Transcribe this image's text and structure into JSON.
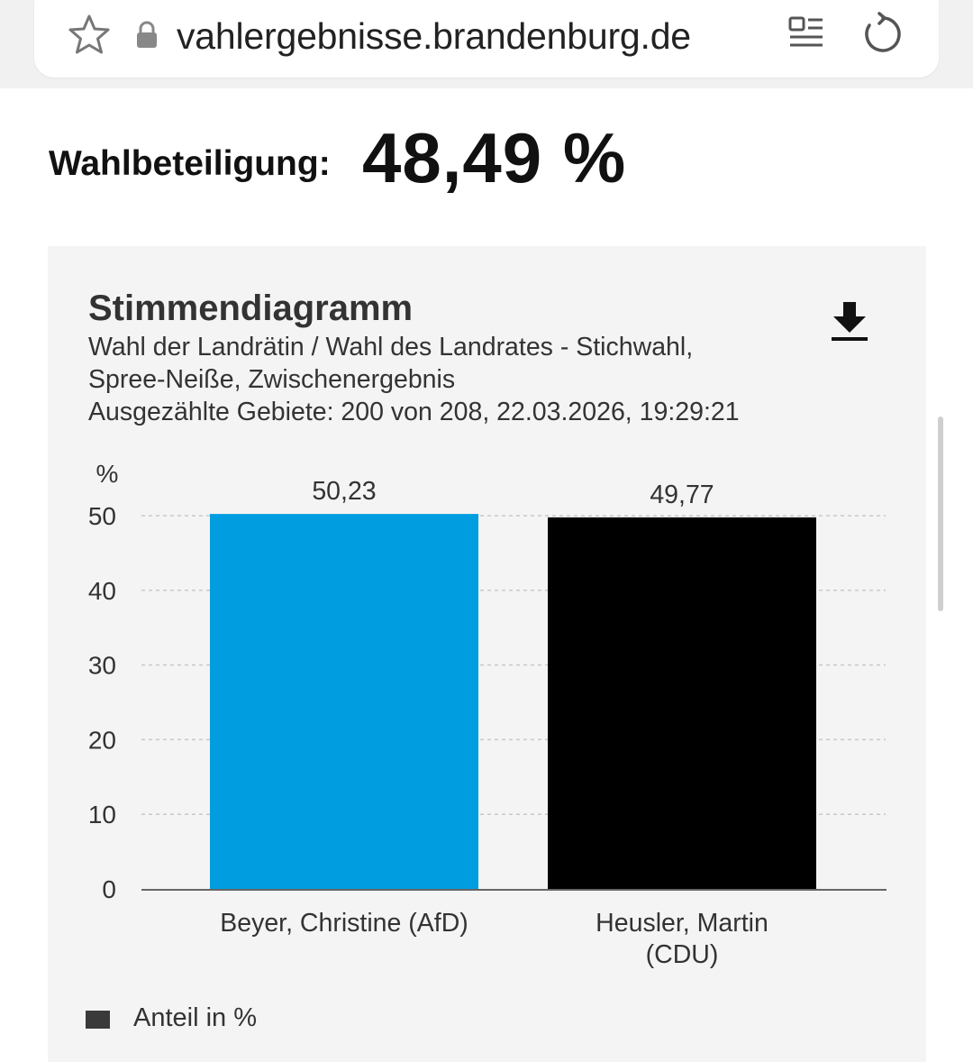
{
  "browser": {
    "url": "vahlergebnisse.brandenburg.de",
    "icons": [
      "star-icon",
      "lock-icon",
      "reader-mode-icon",
      "reload-icon"
    ]
  },
  "turnout": {
    "label": "Wahlbeteiligung:",
    "value": "48,49 %"
  },
  "card": {
    "title": "Stimmendiagramm",
    "subtitle_line1": "Wahl der Landrätin / Wahl des Landrates - Stichwahl,",
    "subtitle_line2": "Spree-Neiße, Zwischenergebnis",
    "subtitle_line3": "Ausgezählte Gebiete: 200 von 208, 22.03.2026, 19:29:21",
    "download_icon": "download-icon"
  },
  "chart_data": {
    "type": "bar",
    "categories": [
      "Beyer, Christine (AfD)",
      "Heusler, Martin (CDU)"
    ],
    "category_lines": [
      [
        "Beyer, Christine (AfD)"
      ],
      [
        "Heusler, Martin",
        "(CDU)"
      ]
    ],
    "values": [
      50.23,
      49.77
    ],
    "value_labels": [
      "50,23",
      "49,77"
    ],
    "colors": [
      "#009ee0",
      "#000000"
    ],
    "ylabel": "%",
    "ylim": [
      0,
      50
    ],
    "yticks": [
      0,
      10,
      20,
      30,
      40,
      50
    ],
    "grid": true,
    "legend": "Anteil in %",
    "legend_placement": "bottom-left"
  }
}
